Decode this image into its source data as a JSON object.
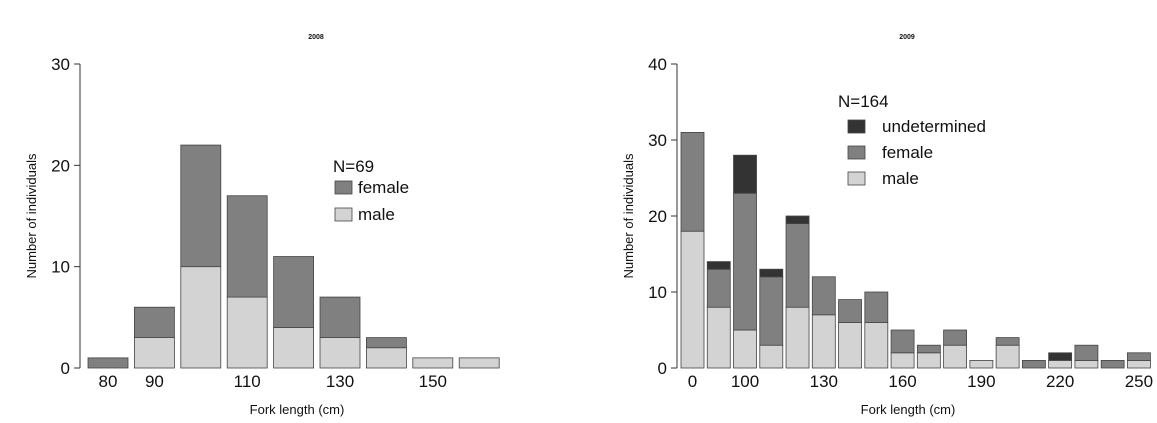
{
  "colors": {
    "male": "#d3d3d3",
    "female": "#808080",
    "undetermined": "#333333"
  },
  "chart_data": [
    {
      "type": "bar",
      "stacked": true,
      "title": "2008",
      "xlabel": "Fork length (cm)",
      "ylabel": "Number of individuals",
      "ylim": [
        0,
        30
      ],
      "yticks": [
        "0",
        "10",
        "20",
        "30"
      ],
      "xtick_labels": [
        "80",
        "90",
        "110",
        "130",
        "150"
      ],
      "legend_n": "N=69",
      "series": [
        {
          "name": "female",
          "key": "female",
          "values": [
            1,
            3,
            12,
            10,
            7,
            4,
            1,
            0,
            0
          ]
        },
        {
          "name": "male",
          "key": "male",
          "values": [
            0,
            3,
            10,
            7,
            4,
            3,
            2,
            1,
            1
          ]
        }
      ],
      "legend_order": [
        "female",
        "male"
      ]
    },
    {
      "type": "bar",
      "stacked": true,
      "title": "2009",
      "xlabel": "Fork length (cm)",
      "ylabel": "Number of individuals",
      "ylim": [
        0,
        40
      ],
      "yticks": [
        "0",
        "10",
        "20",
        "30",
        "40"
      ],
      "xtick_labels": [
        "0",
        "100",
        "130",
        "160",
        "190",
        "220",
        "250"
      ],
      "legend_n": "N=164",
      "series": [
        {
          "name": "male",
          "key": "male",
          "values": [
            18,
            8,
            5,
            3,
            8,
            7,
            6,
            6,
            2,
            2,
            3,
            1,
            3,
            0,
            1,
            1,
            0,
            1
          ]
        },
        {
          "name": "female",
          "key": "female",
          "values": [
            13,
            5,
            18,
            9,
            11,
            5,
            3,
            4,
            3,
            1,
            2,
            0,
            1,
            1,
            0,
            2,
            1,
            1
          ]
        },
        {
          "name": "undetermined",
          "key": "undetermined",
          "values": [
            0,
            1,
            5,
            1,
            1,
            0,
            0,
            0,
            0,
            0,
            0,
            0,
            0,
            0,
            1,
            0,
            0,
            0
          ]
        }
      ],
      "legend_order": [
        "undetermined",
        "female",
        "male"
      ]
    }
  ]
}
